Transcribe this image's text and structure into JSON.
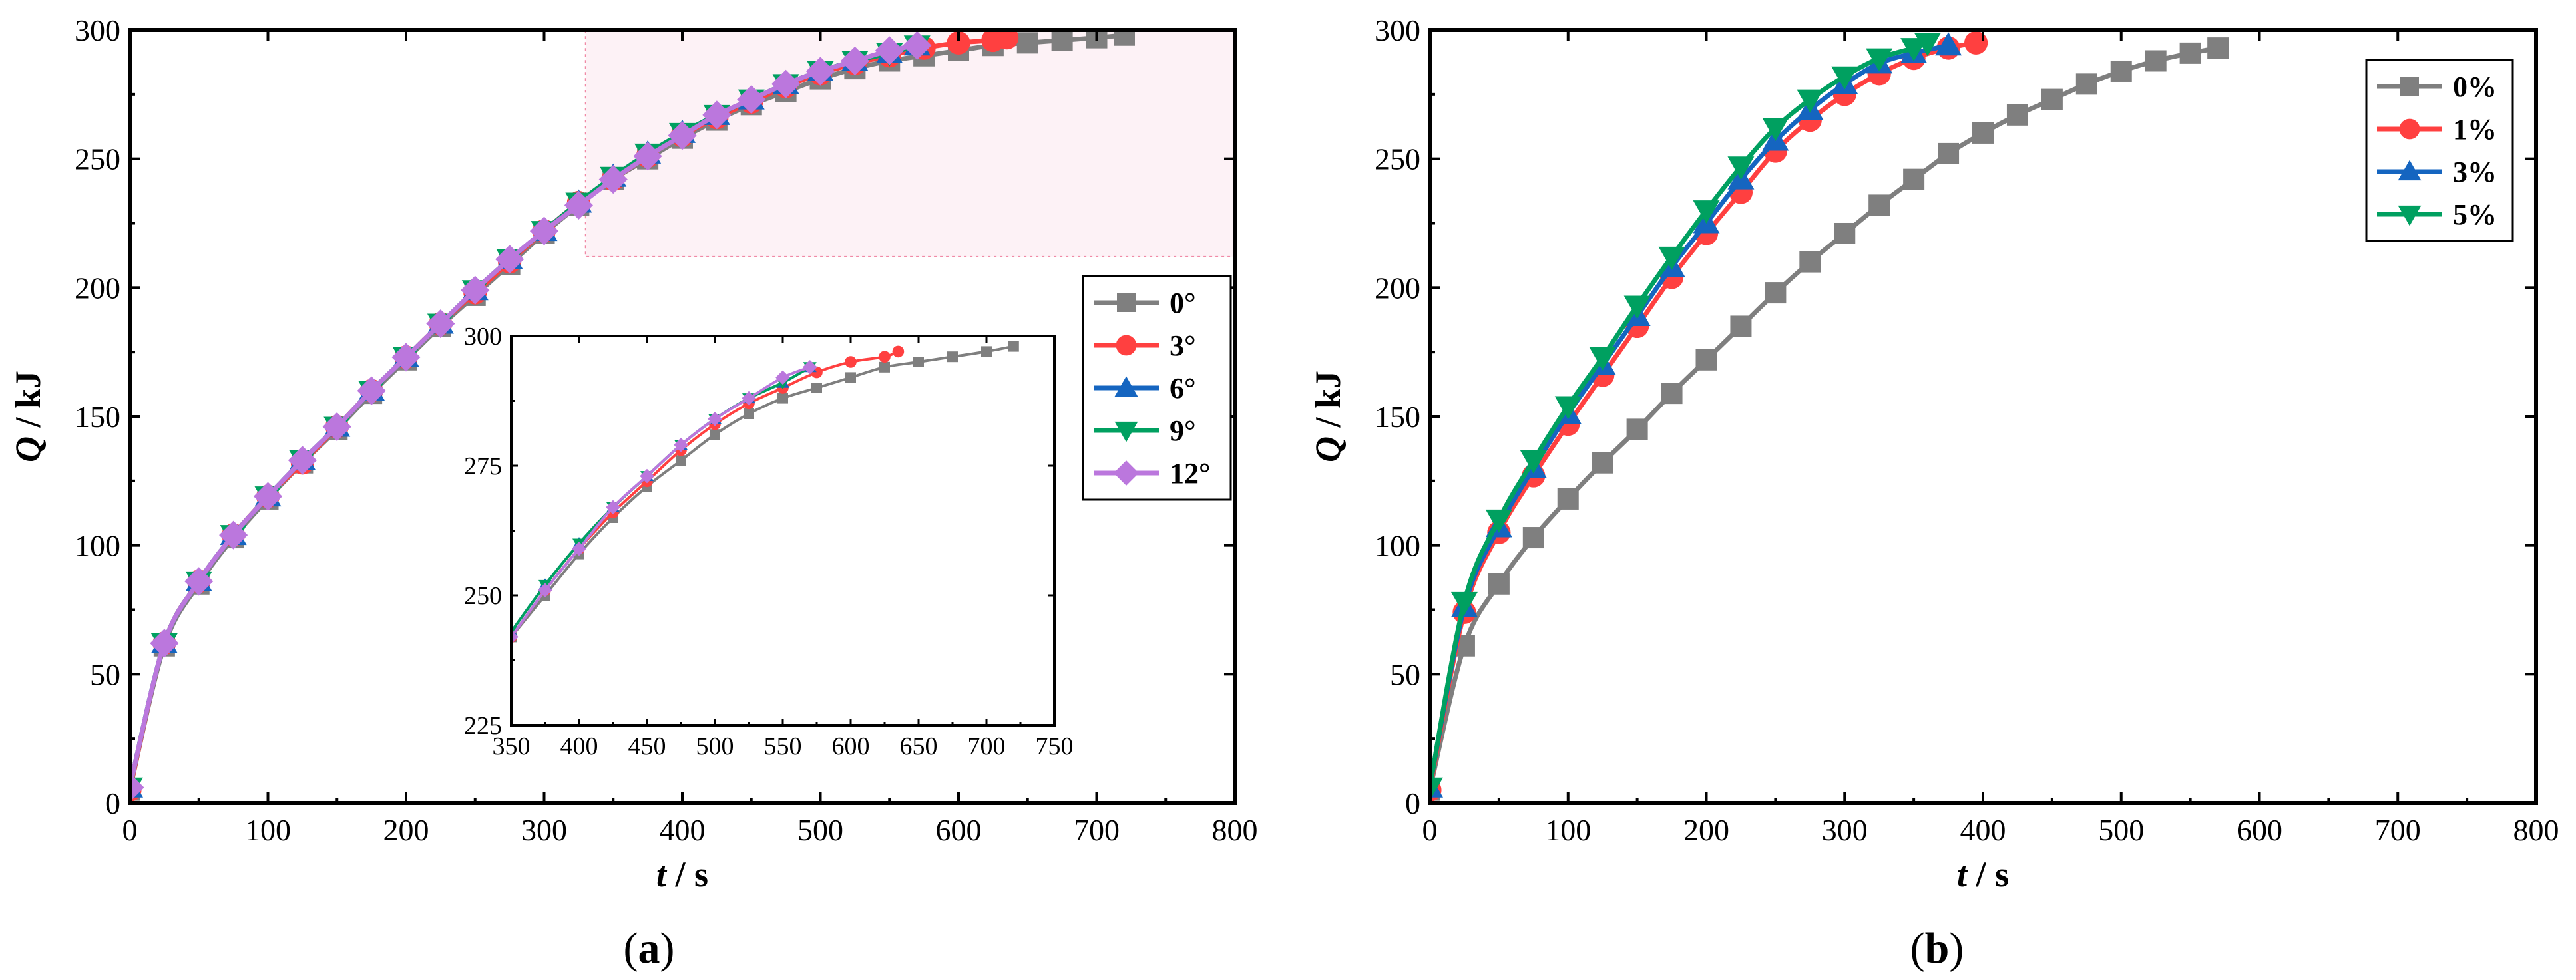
{
  "chart_data": [
    {
      "id": "a",
      "type": "line",
      "panel_label": "a",
      "xlabel_var": "t",
      "xlabel_unit": " / s",
      "ylabel_var": "Q",
      "ylabel_unit": " / kJ",
      "xlim": [
        0,
        800
      ],
      "ylim": [
        0,
        300
      ],
      "xticks": [
        0,
        100,
        200,
        300,
        400,
        500,
        600,
        700,
        800
      ],
      "yticks": [
        0,
        50,
        100,
        150,
        200,
        250,
        300
      ],
      "legend_position": "right",
      "zoom_region": {
        "x": [
          330,
          800
        ],
        "y": [
          212,
          300
        ]
      },
      "series": [
        {
          "name": "0°",
          "color": "#7f7f7f",
          "marker": "square",
          "x": [
            0,
            25,
            50,
            75,
            100,
            125,
            150,
            175,
            200,
            225,
            250,
            275,
            300,
            325,
            350,
            375,
            400,
            425,
            450,
            475,
            500,
            525,
            550,
            575,
            600,
            625,
            650,
            675,
            700,
            720
          ],
          "y": [
            5,
            61,
            85,
            103,
            118,
            132,
            145,
            159,
            172,
            185,
            197,
            209,
            221,
            232,
            242,
            250,
            258,
            265,
            271,
            276,
            281,
            285,
            288,
            290,
            292,
            294,
            295,
            296,
            297,
            298
          ]
        },
        {
          "name": "3°",
          "color": "#ff4040",
          "marker": "circle",
          "x": [
            0,
            25,
            50,
            75,
            100,
            125,
            150,
            175,
            200,
            225,
            250,
            275,
            300,
            325,
            350,
            375,
            400,
            425,
            450,
            475,
            500,
            525,
            550,
            575,
            600,
            625,
            635
          ],
          "y": [
            5,
            62,
            86,
            104,
            119,
            132,
            146,
            160,
            173,
            186,
            198,
            210,
            222,
            233,
            242,
            251,
            259,
            266,
            272,
            278,
            283,
            287,
            290,
            293,
            295,
            296,
            297
          ]
        },
        {
          "name": "6°",
          "color": "#1565c0",
          "marker": "triangle-up",
          "x": [
            0,
            25,
            50,
            75,
            100,
            125,
            150,
            175,
            200,
            225,
            250,
            275,
            300,
            325,
            350,
            375,
            400,
            425,
            450,
            475,
            500,
            525,
            550,
            570
          ],
          "y": [
            6,
            62,
            86,
            104,
            119,
            133,
            146,
            160,
            173,
            186,
            199,
            211,
            222,
            233,
            243,
            252,
            260,
            267,
            273,
            279,
            284,
            288,
            291,
            294
          ]
        },
        {
          "name": "9°",
          "color": "#00a060",
          "marker": "triangle-down",
          "x": [
            0,
            25,
            50,
            75,
            100,
            125,
            150,
            175,
            200,
            225,
            250,
            275,
            300,
            325,
            350,
            375,
            400,
            425,
            450,
            475,
            500,
            525,
            550,
            570
          ],
          "y": [
            6,
            62,
            86,
            104,
            119,
            133,
            146,
            160,
            173,
            186,
            199,
            211,
            222,
            233,
            243,
            252,
            260,
            267,
            273,
            279,
            284,
            288,
            291,
            294
          ]
        },
        {
          "name": "12°",
          "color": "#bb77dd",
          "marker": "diamond",
          "x": [
            0,
            25,
            50,
            75,
            100,
            125,
            150,
            175,
            200,
            225,
            250,
            275,
            300,
            325,
            350,
            375,
            400,
            425,
            450,
            475,
            500,
            525,
            550,
            570
          ],
          "y": [
            6,
            62,
            86,
            104,
            119,
            133,
            146,
            160,
            173,
            186,
            199,
            211,
            222,
            232,
            242,
            251,
            259,
            267,
            273,
            279,
            284,
            288,
            292,
            294
          ]
        }
      ],
      "inset": {
        "xlim": [
          350,
          750
        ],
        "ylim": [
          225,
          300
        ],
        "xticks": [
          350,
          400,
          450,
          500,
          550,
          600,
          650,
          700,
          750
        ],
        "yticks": [
          225,
          250,
          275,
          300
        ]
      }
    },
    {
      "id": "b",
      "type": "line",
      "panel_label": "b",
      "xlabel_var": "t",
      "xlabel_unit": " / s",
      "ylabel_var": "Q",
      "ylabel_unit": " / kJ",
      "xlim": [
        0,
        800
      ],
      "ylim": [
        0,
        300
      ],
      "xticks": [
        0,
        100,
        200,
        300,
        400,
        500,
        600,
        700,
        800
      ],
      "yticks": [
        0,
        50,
        100,
        150,
        200,
        250,
        300
      ],
      "legend_position": "top-right",
      "series": [
        {
          "name": "0%",
          "color": "#7f7f7f",
          "marker": "square",
          "x": [
            0,
            25,
            50,
            75,
            100,
            125,
            150,
            175,
            200,
            225,
            250,
            275,
            300,
            325,
            350,
            375,
            400,
            425,
            450,
            475,
            500,
            525,
            550,
            570
          ],
          "y": [
            5,
            61,
            85,
            103,
            118,
            132,
            145,
            159,
            172,
            185,
            198,
            210,
            221,
            232,
            242,
            252,
            260,
            267,
            273,
            279,
            284,
            288,
            291,
            293
          ]
        },
        {
          "name": "1%",
          "color": "#ff4040",
          "marker": "circle",
          "x": [
            0,
            25,
            50,
            75,
            100,
            125,
            150,
            175,
            200,
            225,
            250,
            275,
            300,
            325,
            350,
            375,
            395
          ],
          "y": [
            5,
            74,
            105,
            127,
            147,
            166,
            185,
            204,
            221,
            237,
            253,
            265,
            275,
            283,
            289,
            293,
            295
          ]
        },
        {
          "name": "3%",
          "color": "#1565c0",
          "marker": "triangle-up",
          "x": [
            0,
            25,
            50,
            75,
            100,
            125,
            150,
            175,
            200,
            225,
            250,
            275,
            300,
            325,
            350,
            375
          ],
          "y": [
            6,
            76,
            107,
            130,
            151,
            170,
            189,
            208,
            225,
            242,
            257,
            269,
            279,
            287,
            291,
            294
          ]
        },
        {
          "name": "5%",
          "color": "#00a060",
          "marker": "triangle-down",
          "x": [
            0,
            25,
            50,
            75,
            100,
            125,
            150,
            175,
            200,
            225,
            250,
            275,
            300,
            325,
            350,
            360
          ],
          "y": [
            6,
            78,
            110,
            133,
            154,
            173,
            193,
            212,
            230,
            247,
            262,
            273,
            282,
            289,
            293,
            295
          ]
        }
      ]
    }
  ]
}
